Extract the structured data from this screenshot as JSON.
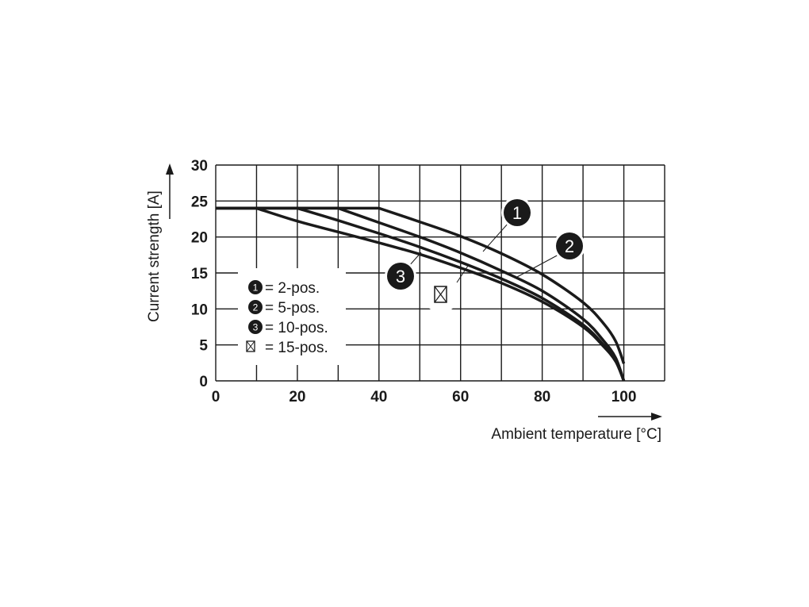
{
  "chart_data": {
    "type": "line",
    "title": "",
    "xlabel": "Ambient temperature [°C]",
    "ylabel": "Current strength [A]",
    "xlim": [
      0,
      110
    ],
    "ylim": [
      0,
      30
    ],
    "grid": true,
    "x_ticks": [
      0,
      20,
      40,
      60,
      80,
      100
    ],
    "y_ticks": [
      0,
      5,
      10,
      15,
      20,
      25,
      30
    ],
    "x_tick_labels": [
      "0",
      "20",
      "40",
      "60",
      "80",
      "100"
    ],
    "y_tick_labels": [
      "0",
      "5",
      "10",
      "15",
      "20",
      "25",
      "30"
    ],
    "legend_placement": "lower-left",
    "series": [
      {
        "name": "2-pos.",
        "marker": "1",
        "legend": "= 2-pos.",
        "x": [
          0,
          40,
          50,
          60,
          70,
          80,
          90,
          95,
          98,
          100
        ],
        "y": [
          24,
          24,
          22.1,
          20.1,
          17.7,
          14.8,
          10.9,
          8.0,
          5.5,
          2.4
        ]
      },
      {
        "name": "5-pos.",
        "marker": "2",
        "legend": "= 5-pos.",
        "x": [
          0,
          30,
          40,
          50,
          60,
          70,
          80,
          90,
          95,
          98,
          100
        ],
        "y": [
          24,
          24,
          22.0,
          20.0,
          17.8,
          15.3,
          12.5,
          8.6,
          5.6,
          3.2,
          0
        ]
      },
      {
        "name": "10-pos.",
        "marker": "3",
        "legend": "= 10-pos.",
        "x": [
          0,
          20,
          30,
          40,
          50,
          60,
          70,
          80,
          90,
          95,
          98,
          100
        ],
        "y": [
          24,
          24,
          22.3,
          20.5,
          18.6,
          16.5,
          14.2,
          11.5,
          7.8,
          5.0,
          2.8,
          0
        ]
      },
      {
        "name": "15-pos.",
        "marker": "crossed-box",
        "legend": "= 15-pos.",
        "x": [
          0,
          10,
          20,
          30,
          40,
          50,
          60,
          70,
          80,
          90,
          95,
          98,
          100
        ],
        "y": [
          24,
          24,
          22.2,
          20.7,
          19.2,
          17.6,
          15.7,
          13.6,
          11.0,
          7.5,
          4.8,
          2.7,
          0
        ]
      }
    ],
    "callouts": [
      "1",
      "2",
      "3"
    ]
  }
}
